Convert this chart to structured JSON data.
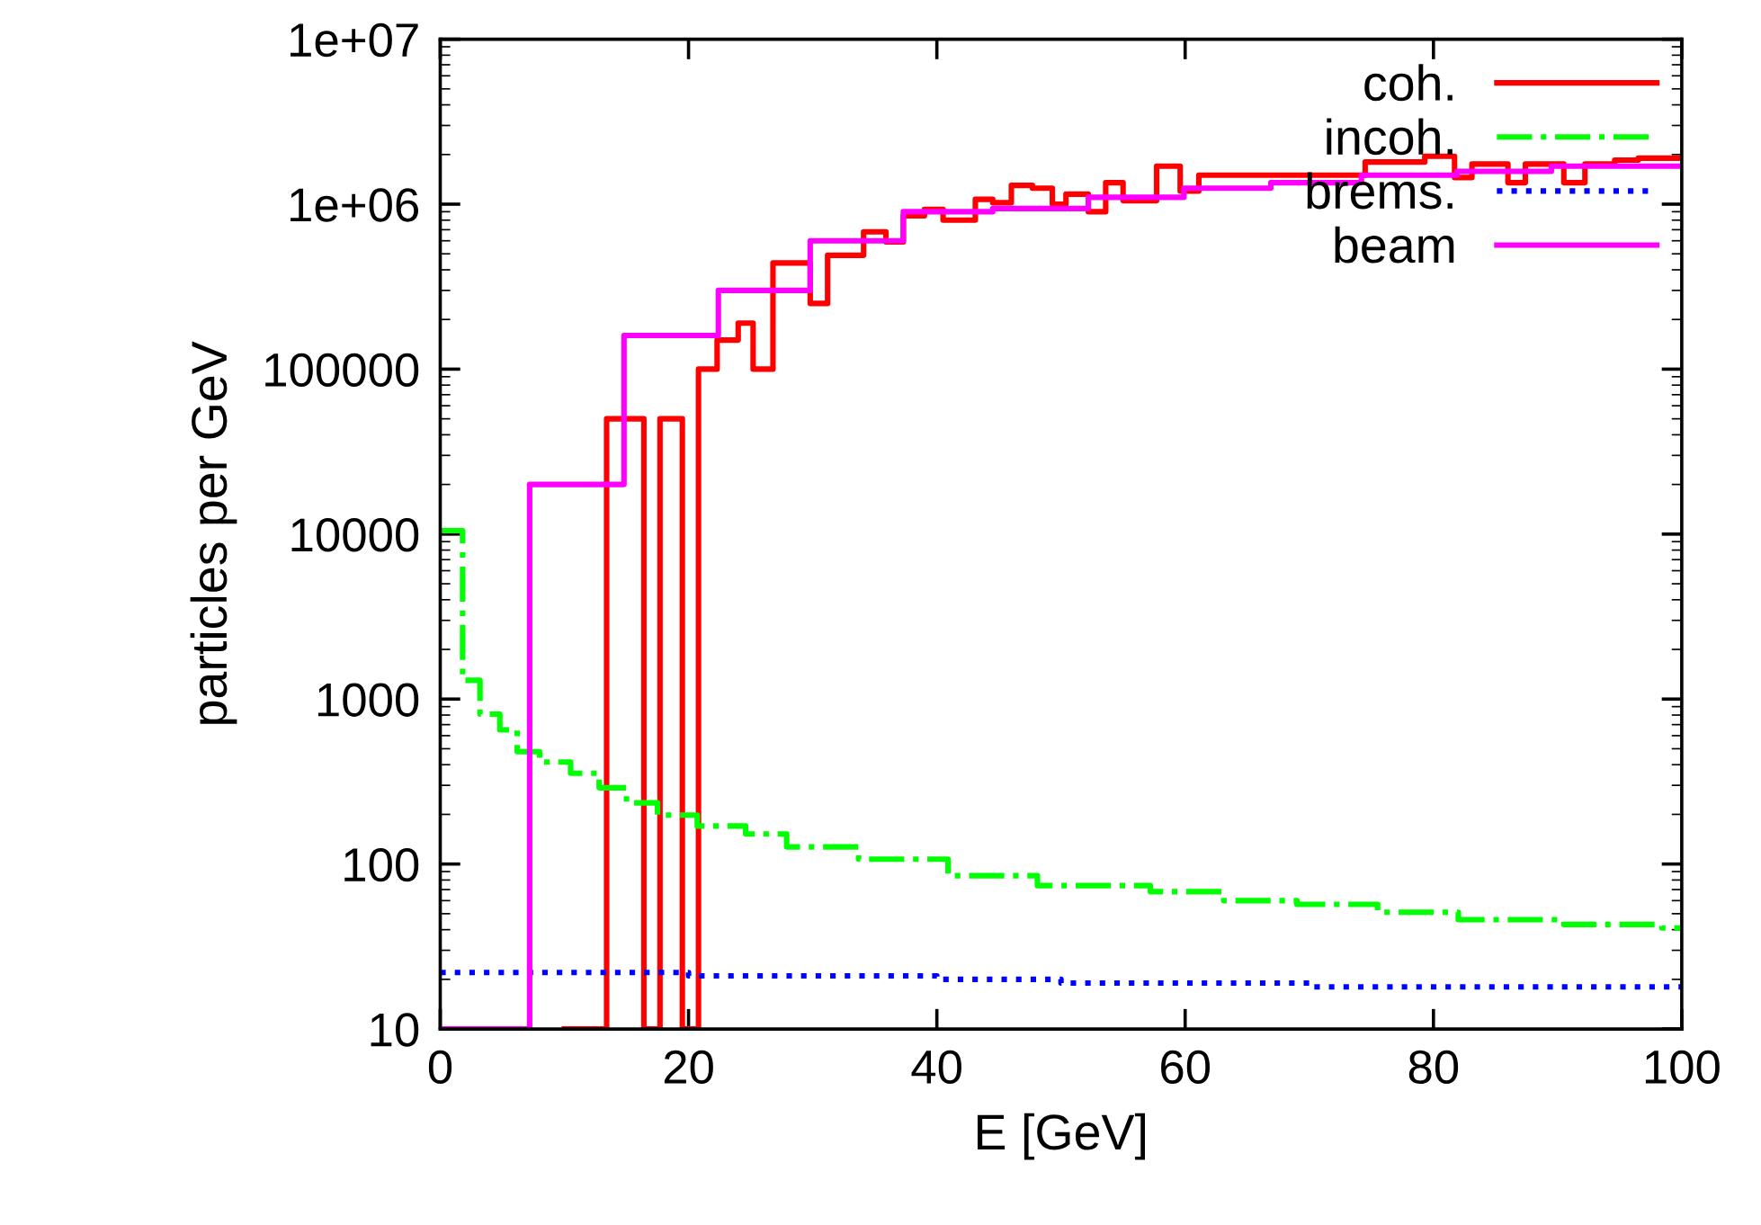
{
  "chart_data": {
    "type": "step",
    "xlabel": "E [GeV]",
    "ylabel": "particles per GeV",
    "xlim": [
      0,
      100
    ],
    "xticks": [
      0,
      20,
      40,
      60,
      80,
      100
    ],
    "ylim": [
      10,
      10000000
    ],
    "log": "y",
    "yticks": [
      10,
      100,
      1000,
      10000,
      100000,
      {
        "value": 1000000,
        "label": "1e+06"
      },
      {
        "value": 10000000,
        "label": "1e+07"
      }
    ],
    "legend": "top right",
    "grid": false,
    "series": [
      {
        "name": "coh.",
        "color": "#ff0000",
        "line_style": "solid",
        "x": [
          10,
          13.4,
          16.4,
          17.7,
          19.5,
          20.8,
          22.3,
          24.0,
          25.2,
          26.8,
          29.8,
          31.2,
          34.1,
          35.9,
          37.3,
          39.0,
          40.5,
          43.1,
          44.5,
          46.0,
          47.7,
          49.3,
          50.4,
          52.2,
          53.6,
          55.0,
          57.7,
          59.6,
          61.1,
          74.5,
          79.3,
          81.7,
          83.1,
          86.0,
          87.4,
          90.5,
          92.2,
          94.6,
          96.5,
          100
        ],
        "values": [
          10,
          50000,
          10,
          50000,
          10,
          100000,
          150000,
          190000,
          100000,
          440000,
          250000,
          490000,
          680000,
          590000,
          850000,
          930000,
          800000,
          1070000,
          1020000,
          1300000,
          1250000,
          1000000,
          1150000,
          900000,
          1350000,
          1050000,
          1700000,
          1200000,
          1500000,
          1800000,
          1950000,
          1450000,
          1750000,
          1350000,
          1750000,
          1350000,
          1750000,
          1850000,
          1900000,
          1900000
        ]
      },
      {
        "name": "incoh.",
        "color": "#00ff00",
        "line_style": "dashdot",
        "x": [
          0,
          1.8,
          3.2,
          4.8,
          6.2,
          8.0,
          10.5,
          12.8,
          15.0,
          17.5,
          20.7,
          24.6,
          27.9,
          33.7,
          40.9,
          48.1,
          57.2,
          63.1,
          69.0,
          75.5,
          82.0,
          90.5,
          98.4,
          100
        ],
        "values": [
          10500,
          1300,
          810,
          650,
          480,
          415,
          355,
          290,
          235,
          198,
          170,
          152,
          127,
          107,
          85,
          74,
          68,
          60,
          57,
          51,
          46,
          43,
          41,
          41
        ]
      },
      {
        "name": "brems.",
        "color": "#0000ff",
        "line_style": "dotted",
        "x": [
          0,
          10,
          20,
          30,
          40,
          50,
          60,
          70,
          80,
          90,
          100
        ],
        "values": [
          22,
          22,
          21,
          21,
          20,
          19,
          19,
          18,
          18,
          18,
          18
        ]
      },
      {
        "name": "beam",
        "color": "#ff00ff",
        "line_style": "solid",
        "x": [
          0,
          7.2,
          14.8,
          22.4,
          29.8,
          37.3,
          44.5,
          52.2,
          59.9,
          66.9,
          74.2,
          81.9,
          89.5,
          100
        ],
        "values": [
          10,
          20000,
          160000,
          300000,
          600000,
          900000,
          940000,
          1100000,
          1250000,
          1350000,
          1500000,
          1580000,
          1700000,
          1700000
        ]
      }
    ]
  }
}
